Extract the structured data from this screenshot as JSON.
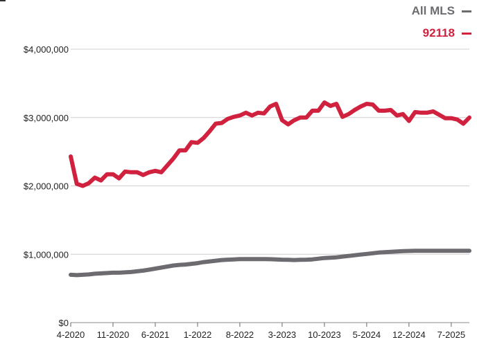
{
  "chart_data": {
    "type": "line",
    "title": "",
    "xlabel": "",
    "ylabel": "",
    "ylim": [
      0,
      4000000
    ],
    "y_ticks": [
      "$0",
      "$1,000,000",
      "$2,000,000",
      "$3,000,000",
      "$4,000,000"
    ],
    "y_tick_values": [
      0,
      1000000,
      2000000,
      3000000,
      4000000
    ],
    "x_ticks": [
      "4-2020",
      "11-2020",
      "6-2021",
      "1-2022",
      "8-2022",
      "3-2023",
      "10-2023",
      "5-2024",
      "12-2024",
      "7-2025"
    ],
    "x_tick_index": [
      0,
      7,
      14,
      21,
      28,
      35,
      42,
      49,
      56,
      63
    ],
    "x": [
      "4-2020",
      "5-2020",
      "6-2020",
      "7-2020",
      "8-2020",
      "9-2020",
      "10-2020",
      "11-2020",
      "12-2020",
      "1-2021",
      "2-2021",
      "3-2021",
      "4-2021",
      "5-2021",
      "6-2021",
      "7-2021",
      "8-2021",
      "9-2021",
      "10-2021",
      "11-2021",
      "12-2021",
      "1-2022",
      "2-2022",
      "3-2022",
      "4-2022",
      "5-2022",
      "6-2022",
      "7-2022",
      "8-2022",
      "9-2022",
      "10-2022",
      "11-2022",
      "12-2022",
      "1-2023",
      "2-2023",
      "3-2023",
      "4-2023",
      "5-2023",
      "6-2023",
      "7-2023",
      "8-2023",
      "9-2023",
      "10-2023",
      "11-2023",
      "12-2023",
      "1-2024",
      "2-2024",
      "3-2024",
      "4-2024",
      "5-2024",
      "6-2024",
      "7-2024",
      "8-2024",
      "9-2024",
      "10-2024",
      "11-2024",
      "12-2024",
      "1-2025",
      "2-2025",
      "3-2025",
      "4-2025",
      "5-2025",
      "6-2025",
      "7-2025",
      "8-2025",
      "9-2025",
      "10-2025"
    ],
    "legend_position": "top-right",
    "grid": "horizontal",
    "series": [
      {
        "name": "All MLS",
        "color": "#6d6b70",
        "values": [
          700000,
          695000,
          700000,
          705000,
          715000,
          720000,
          725000,
          730000,
          730000,
          735000,
          740000,
          750000,
          760000,
          775000,
          790000,
          805000,
          820000,
          835000,
          845000,
          850000,
          860000,
          870000,
          885000,
          895000,
          905000,
          915000,
          920000,
          925000,
          930000,
          930000,
          930000,
          930000,
          930000,
          928000,
          925000,
          920000,
          918000,
          915000,
          918000,
          920000,
          925000,
          935000,
          945000,
          950000,
          955000,
          965000,
          975000,
          985000,
          995000,
          1005000,
          1015000,
          1025000,
          1030000,
          1035000,
          1040000,
          1045000,
          1048000,
          1050000,
          1050000,
          1050000,
          1050000,
          1050000,
          1050000,
          1050000,
          1050000,
          1050000,
          1050000
        ]
      },
      {
        "name": "92118",
        "color": "#d0213f",
        "values": [
          2430000,
          2030000,
          2000000,
          2040000,
          2120000,
          2080000,
          2170000,
          2170000,
          2110000,
          2210000,
          2200000,
          2200000,
          2160000,
          2200000,
          2220000,
          2200000,
          2300000,
          2400000,
          2520000,
          2520000,
          2640000,
          2630000,
          2700000,
          2800000,
          2910000,
          2920000,
          2980000,
          3010000,
          3030000,
          3070000,
          3030000,
          3070000,
          3060000,
          3160000,
          3200000,
          2960000,
          2900000,
          2960000,
          3000000,
          3000000,
          3100000,
          3100000,
          3220000,
          3170000,
          3200000,
          3010000,
          3050000,
          3110000,
          3160000,
          3200000,
          3190000,
          3100000,
          3100000,
          3110000,
          3030000,
          3050000,
          2950000,
          3080000,
          3070000,
          3070000,
          3090000,
          3040000,
          2990000,
          2990000,
          2970000,
          2910000,
          3000000
        ]
      }
    ]
  }
}
